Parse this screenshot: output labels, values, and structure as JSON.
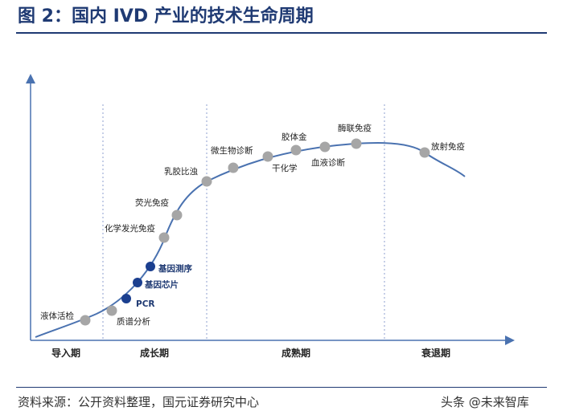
{
  "title": "图 2：国内 IVD 产业的技术生命周期",
  "source": "资料来源：公开资料整理，国元证券研究中心",
  "watermark": "头条 @未来智库",
  "colors": {
    "title": "#1f3a73",
    "curve": "#4a72b0",
    "grey_point": "#a6a6a6",
    "dark_point": "#1b3f8f",
    "divider": "#8c9fcf"
  },
  "chart_data": {
    "type": "line",
    "title": "",
    "xlabel": "",
    "ylabel": "",
    "grid": false,
    "phases": [
      "导入期",
      "成长期",
      "成熟期",
      "衰退期"
    ],
    "technologies": [
      {
        "name": "液体活检",
        "highlight": false
      },
      {
        "name": "质谱分析",
        "highlight": false
      },
      {
        "name": "PCR",
        "highlight": true
      },
      {
        "name": "基因芯片",
        "highlight": true
      },
      {
        "name": "基因测序",
        "highlight": true
      },
      {
        "name": "化学发光免疫",
        "highlight": false
      },
      {
        "name": "荧光免疫",
        "highlight": false
      },
      {
        "name": "乳胶比浊",
        "highlight": false
      },
      {
        "name": "微生物诊断",
        "highlight": false
      },
      {
        "name": "干化学",
        "highlight": false
      },
      {
        "name": "胶体金",
        "highlight": false
      },
      {
        "name": "血液诊断",
        "highlight": false
      },
      {
        "name": "酶联免疫",
        "highlight": false
      },
      {
        "name": "放射免疫",
        "highlight": false
      }
    ]
  }
}
